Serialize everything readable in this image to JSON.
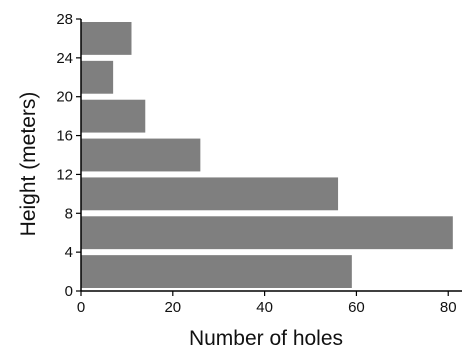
{
  "chart_data": {
    "type": "bar",
    "orientation": "horizontal",
    "categories": [
      "0-4",
      "4-8",
      "8-12",
      "12-16",
      "16-20",
      "20-24",
      "24-28"
    ],
    "values": [
      59,
      81,
      56,
      26,
      14,
      7,
      11
    ],
    "xlabel": "Number of holes",
    "ylabel": "Height (meters)",
    "xlim": [
      0,
      83
    ],
    "ylim": [
      0,
      28
    ],
    "xticks": [
      "0",
      "20",
      "40",
      "60",
      "80"
    ],
    "yticks": [
      "0",
      "4",
      "8",
      "12",
      "16",
      "20",
      "24",
      "28"
    ],
    "grid": false,
    "legend": "none",
    "colors": {
      "bar": "#7f7f7f",
      "axis": "#000000"
    }
  }
}
